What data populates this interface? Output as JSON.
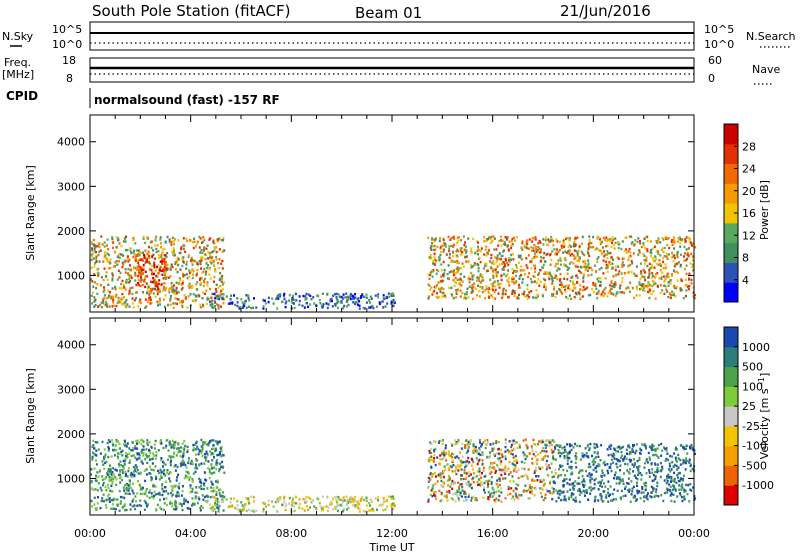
{
  "header": {
    "station": "South Pole Station (fitACF)",
    "beam": "Beam 01",
    "date": "21/Jun/2016"
  },
  "strip1": {
    "left_label": "N.Sky",
    "left_ticks": [
      "10^5",
      "10^0"
    ],
    "right_label": "N.Search",
    "right_ticks": [
      "10^5",
      "10^0"
    ]
  },
  "strip2": {
    "left_label_1": "Freq.",
    "left_label_2": "[MHz]",
    "left_ticks": [
      "18",
      "8"
    ],
    "right_label": "Nave",
    "right_ticks": [
      "60",
      "0"
    ]
  },
  "cpid": {
    "label": "CPID",
    "text": "normalsound (fast) -157 RF"
  },
  "colors": {
    "power": [
      "#0000ff",
      "#2c51b7",
      "#3f8f5f",
      "#58a860",
      "#f2c400",
      "#f59a00",
      "#f06a00",
      "#e23000",
      "#cc0000"
    ],
    "velocity": [
      "#e00000",
      "#f06400",
      "#f5a000",
      "#f3c400",
      "#c8c8c8",
      "#7fcc3b",
      "#4aa24a",
      "#2b7f7a",
      "#1a48b0"
    ]
  },
  "chart_data": [
    {
      "type": "heatmap",
      "title": "",
      "xlabel": "",
      "ylabel": "Slant Range [km]",
      "xlim": [
        "00:00",
        "00:00"
      ],
      "ylim": [
        180,
        4600
      ],
      "yticks": [
        "1000",
        "2000",
        "3000",
        "4000"
      ],
      "colorbar": {
        "label": "Power [dB]",
        "ticks": [
          "4",
          "8",
          "12",
          "16",
          "20",
          "24",
          "28"
        ],
        "range": [
          0,
          32
        ]
      },
      "echo_regions": [
        {
          "start_hr": 0.0,
          "end_hr": 5.3,
          "range_km": [
            300,
            1900
          ],
          "level": "12-28 dB"
        },
        {
          "start_hr": 1.8,
          "end_hr": 3.0,
          "range_km": [
            700,
            1500
          ],
          "level": "24-32 dB"
        },
        {
          "start_hr": 4.6,
          "end_hr": 12.1,
          "range_km": [
            280,
            620
          ],
          "level": "4-16 dB"
        },
        {
          "start_hr": 13.4,
          "end_hr": 24.0,
          "range_km": [
            500,
            1900
          ],
          "level": "8-28 dB"
        }
      ]
    },
    {
      "type": "heatmap",
      "title": "",
      "xlabel": "Time UT",
      "ylabel": "Slant Range [km]",
      "xlim": [
        "00:00",
        "00:00"
      ],
      "ylim": [
        180,
        4600
      ],
      "xticks": [
        "00:00",
        "04:00",
        "08:00",
        "12:00",
        "16:00",
        "20:00",
        "00:00"
      ],
      "yticks": [
        "1000",
        "2000",
        "3000",
        "4000"
      ],
      "colorbar": {
        "label": "Velocity [m s^-1]",
        "ticks": [
          "-1000",
          "-500",
          "-100",
          "-25",
          "25",
          "100",
          "500",
          "1000"
        ],
        "range": [
          -1300,
          1300
        ]
      },
      "echo_regions": [
        {
          "start_hr": 0.0,
          "end_hr": 5.3,
          "range_km": [
            300,
            1900
          ],
          "level": "100 to 1000 m/s"
        },
        {
          "start_hr": 4.6,
          "end_hr": 12.1,
          "range_km": [
            280,
            620
          ],
          "level": "-100 to 100 m/s"
        },
        {
          "start_hr": 13.4,
          "end_hr": 18.5,
          "range_km": [
            500,
            1900
          ],
          "level": "-500 to 500 m/s"
        },
        {
          "start_hr": 18.5,
          "end_hr": 24.0,
          "range_km": [
            500,
            1800
          ],
          "level": "500 to 1000 m/s"
        }
      ]
    }
  ]
}
